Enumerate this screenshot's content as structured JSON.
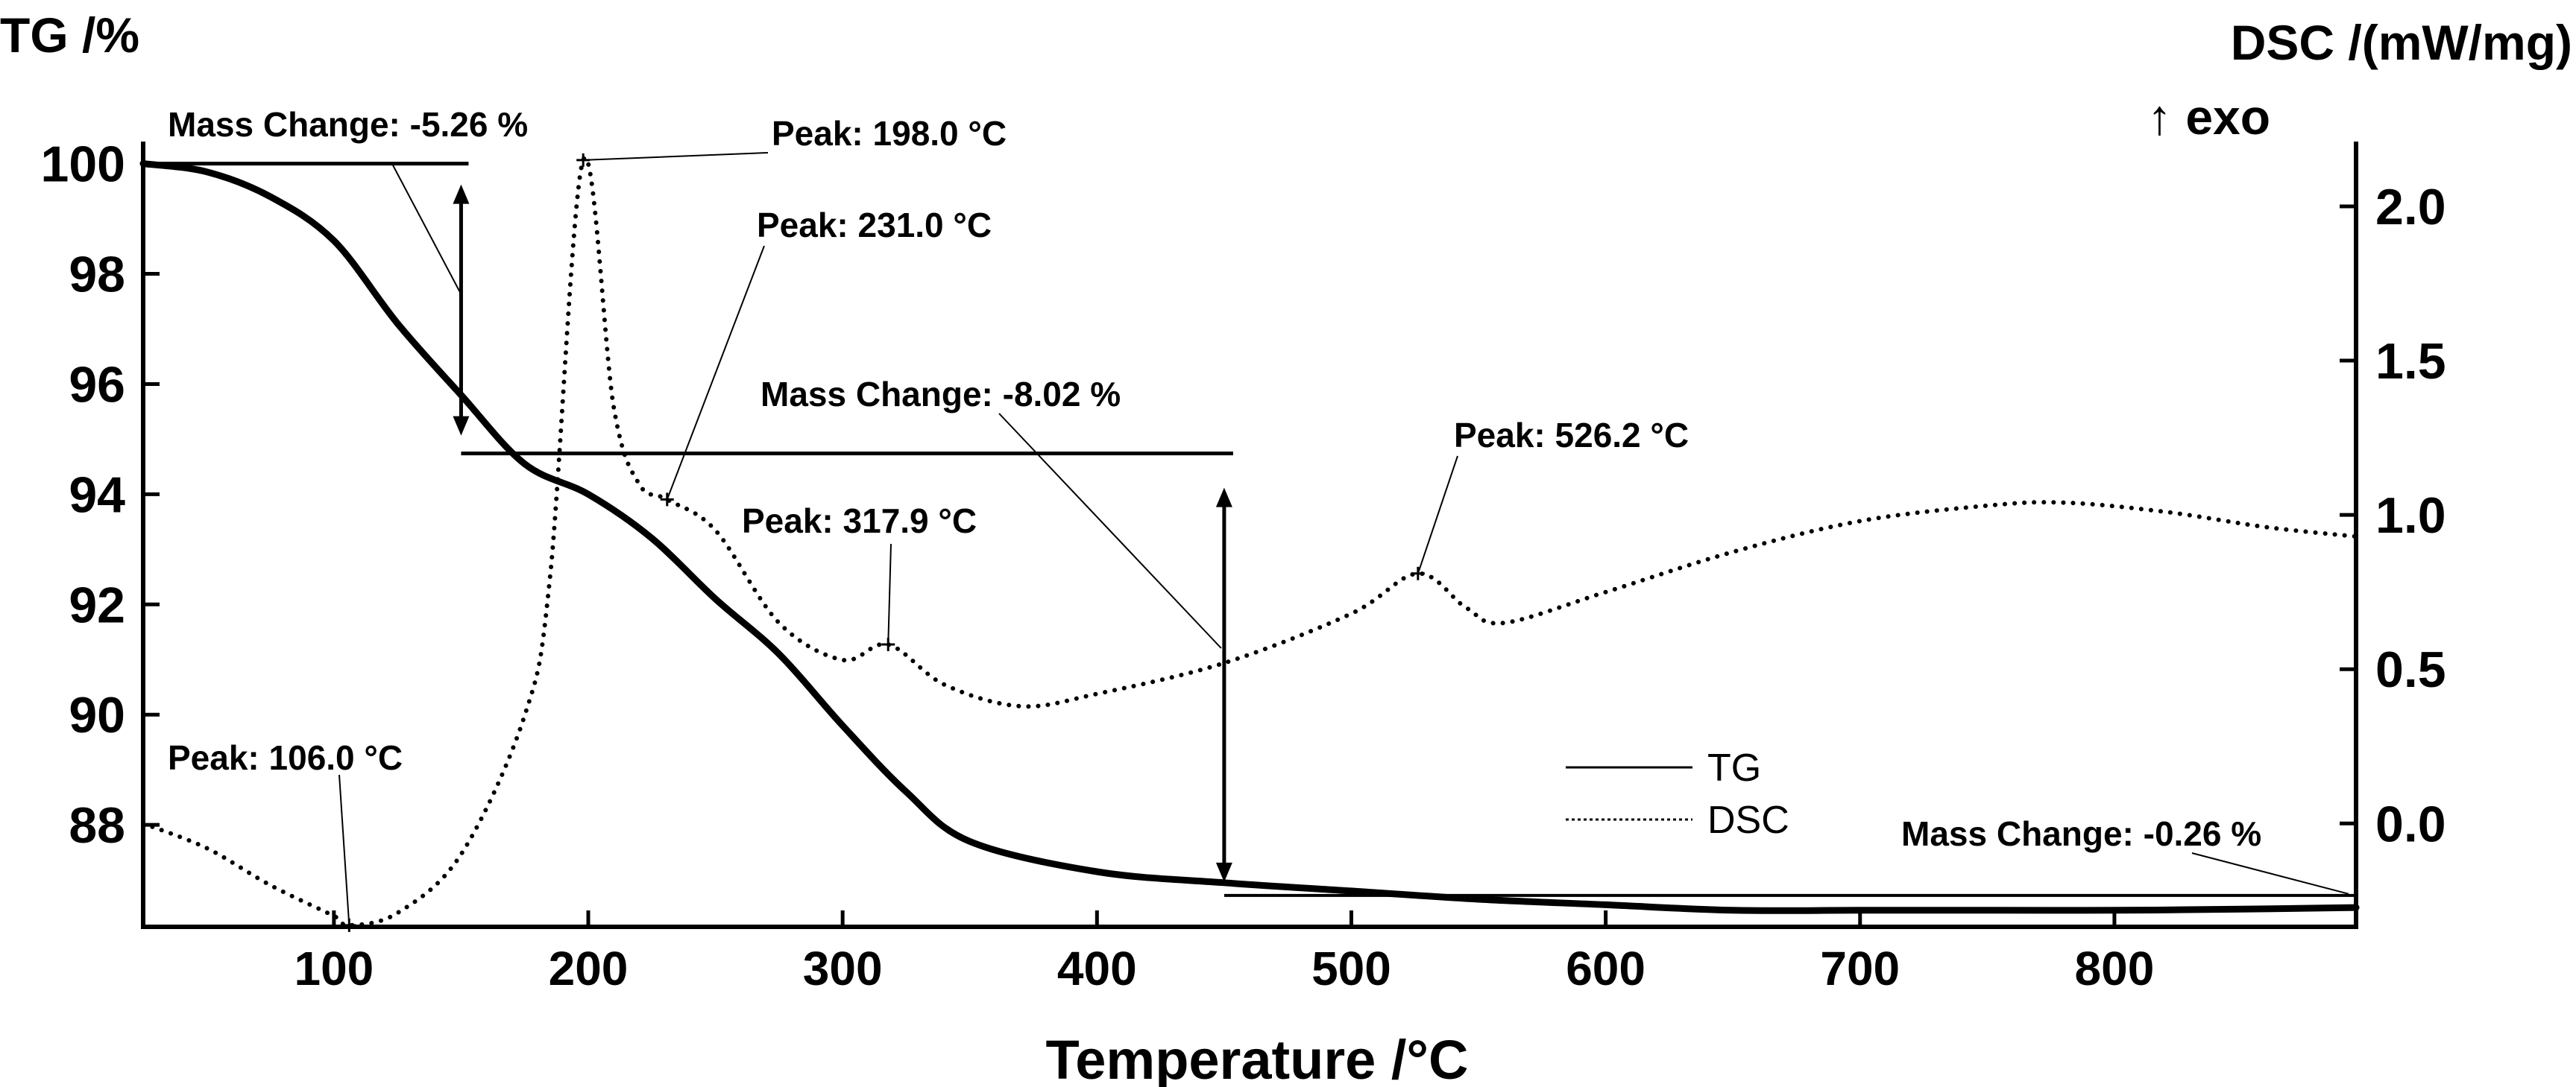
{
  "chart_data": {
    "type": "line",
    "title": "",
    "xlabel": "Temperature /°C",
    "ylabel_left": "TG /%",
    "ylabel_right": "DSC /(mW/mg)",
    "ylabel_right_sub": "↑ exo",
    "xlim": [
      25,
      895
    ],
    "ylim_left": [
      86.15,
      100.4
    ],
    "ylim_right": [
      -0.335,
      2.21
    ],
    "x_ticks": [
      100,
      200,
      300,
      400,
      500,
      600,
      700,
      800
    ],
    "x_tick_labels": [
      "100",
      "200",
      "300",
      "400",
      "500",
      "600",
      "700",
      "800"
    ],
    "y_left_ticks": [
      100,
      98,
      96,
      94,
      92,
      90,
      88
    ],
    "y_left_tick_labels": [
      "100",
      "98",
      "96",
      "94",
      "92",
      "90",
      "88"
    ],
    "y_right_ticks": [
      2.0,
      1.5,
      1.0,
      0.5,
      0.0
    ],
    "y_right_tick_labels": [
      "2.0",
      "1.5",
      "1.0",
      "0.5",
      "0.0"
    ],
    "grid": false,
    "legend": {
      "position": "lower-right",
      "entries": [
        {
          "label": "TG",
          "style": "solid"
        },
        {
          "label": "DSC",
          "style": "dotted"
        }
      ]
    },
    "series": [
      {
        "name": "TG",
        "axis": "left",
        "style": "solid",
        "color": "#000000",
        "x": [
          25,
          50,
          75,
          100,
          125,
          150,
          175,
          200,
          225,
          250,
          275,
          300,
          325,
          350,
          400,
          450,
          500,
          550,
          600,
          650,
          700,
          750,
          800,
          850,
          895
        ],
        "y": [
          100.0,
          99.85,
          99.4,
          98.6,
          97.1,
          95.8,
          94.55,
          94.0,
          93.2,
          92.1,
          91.1,
          89.8,
          88.6,
          87.7,
          87.15,
          86.95,
          86.8,
          86.65,
          86.55,
          86.45,
          86.45,
          86.45,
          86.45,
          86.47,
          86.5
        ]
      },
      {
        "name": "DSC",
        "axis": "right",
        "style": "dotted",
        "color": "#000000",
        "x": [
          25,
          50,
          75,
          100,
          106,
          125,
          150,
          175,
          185,
          198,
          210,
          220,
          231,
          250,
          275,
          300,
          317.9,
          340,
          370,
          400,
          450,
          500,
          526.2,
          545,
          560,
          600,
          650,
          700,
          750,
          780,
          820,
          860,
          895
        ],
        "y": [
          0.0,
          -0.08,
          -0.2,
          -0.3,
          -0.33,
          -0.29,
          -0.1,
          0.35,
          0.8,
          2.15,
          1.35,
          1.1,
          1.05,
          0.95,
          0.65,
          0.53,
          0.58,
          0.45,
          0.38,
          0.42,
          0.52,
          0.68,
          0.81,
          0.7,
          0.65,
          0.75,
          0.88,
          0.98,
          1.03,
          1.04,
          1.01,
          0.96,
          0.93
        ]
      }
    ],
    "annotations": [
      {
        "text": "Mass Change: -5.26 %",
        "x": 150,
        "series": "TG",
        "from": 100.0,
        "to": 94.74
      },
      {
        "text": "Mass Change: -8.02 %",
        "x": 450,
        "series": "TG",
        "from": 94.74,
        "to": 86.72
      },
      {
        "text": "Mass Change: -0.26 %",
        "x": 895,
        "series": "TG",
        "from": 86.72,
        "to": 86.46
      },
      {
        "text": "Peak: 198.0 °C",
        "x": 198.0,
        "series": "DSC"
      },
      {
        "text": "Peak: 231.0 °C",
        "x": 231.0,
        "series": "DSC"
      },
      {
        "text": "Peak: 317.9 °C",
        "x": 317.9,
        "series": "DSC"
      },
      {
        "text": "Peak: 526.2 °C",
        "x": 526.2,
        "series": "DSC"
      },
      {
        "text": "Peak: 106.0 °C",
        "x": 106.0,
        "series": "DSC"
      }
    ]
  }
}
